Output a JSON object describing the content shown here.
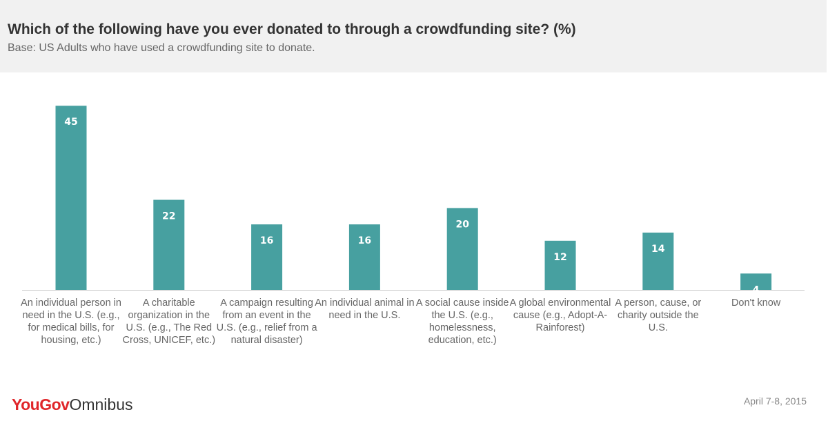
{
  "chart_data": {
    "type": "bar",
    "title": "Which of the following have you ever donated to through a crowdfunding site? (%)",
    "subtitle": "Base: US Adults who have used a crowdfunding site to donate.",
    "categories": [
      "An individual person in need in the U.S. (e.g., for medical bills, for housing, etc.)",
      "A charitable organization in the U.S. (e.g., The Red Cross, UNICEF, etc.)",
      "A campaign resulting from an event in the U.S. (e.g., relief from a natural disaster)",
      "An individual animal in need in the U.S.",
      "A social cause inside the U.S. (e.g., homelessness, education, etc.)",
      "A global environmental cause (e.g., Adopt-A-Rainforest)",
      "A person, cause, or charity outside the U.S.",
      "Don't know"
    ],
    "values": [
      45,
      22,
      16,
      16,
      20,
      12,
      14,
      4
    ],
    "xlabel": "",
    "ylabel": "",
    "ylim": [
      0,
      50
    ],
    "grid": false,
    "legend": "none",
    "bar_color": "#47a0a0",
    "baseline_color": "#cccccc"
  },
  "branding": {
    "logo_part1": "YouGov",
    "logo_part2": "Omnibus",
    "logo_color": "#e0262a"
  },
  "date_label": "April 7-8, 2015"
}
